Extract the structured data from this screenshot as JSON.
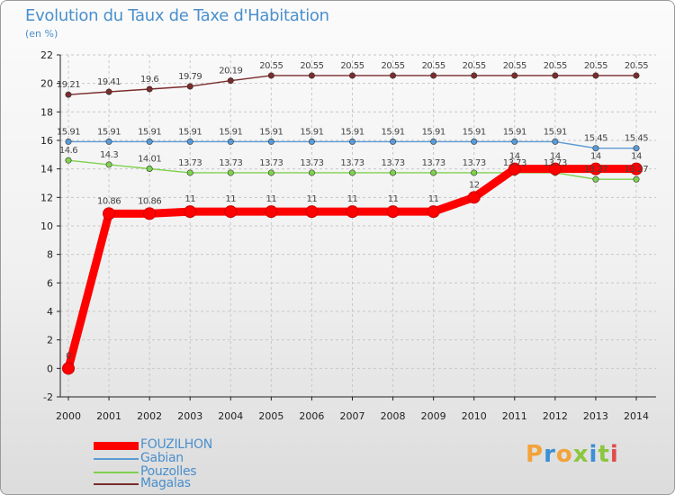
{
  "page": {
    "logo": "Proxiti"
  },
  "chart_data": {
    "type": "line",
    "title": "Evolution du Taux de Taxe d'Habitation",
    "subtitle": "(en %)",
    "xlabel": "",
    "ylabel": "",
    "x": [
      "2000",
      "2001",
      "2002",
      "2003",
      "2004",
      "2005",
      "2006",
      "2007",
      "2008",
      "2009",
      "2010",
      "2011",
      "2012",
      "2013",
      "2014"
    ],
    "ylim": [
      -2,
      22
    ],
    "yticks": [
      -2,
      0,
      2,
      4,
      6,
      8,
      10,
      12,
      14,
      16,
      18,
      20,
      22
    ],
    "grid": true,
    "legend": "bottom-left",
    "series": [
      {
        "name": "FOUZILHON",
        "color": "#ff0000",
        "values": [
          0,
          10.86,
          10.86,
          11,
          11,
          11,
          11,
          11,
          11,
          11,
          12,
          14,
          14,
          14,
          14
        ],
        "labels": [
          "0",
          "10.86",
          "10.86",
          "11",
          "11",
          "11",
          "11",
          "11",
          "11",
          "11",
          "12",
          "14",
          "14",
          "14",
          "14"
        ]
      },
      {
        "name": "Gabian",
        "color": "#5b9bd5",
        "values": [
          15.91,
          15.91,
          15.91,
          15.91,
          15.91,
          15.91,
          15.91,
          15.91,
          15.91,
          15.91,
          15.91,
          15.91,
          15.91,
          15.45,
          15.45
        ],
        "labels": [
          "15.91",
          "15.91",
          "15.91",
          "15.91",
          "15.91",
          "15.91",
          "15.91",
          "15.91",
          "15.91",
          "15.91",
          "15.91",
          "15.91",
          "15.91",
          "15.45",
          "15.45"
        ]
      },
      {
        "name": "Pouzolles",
        "color": "#7fd14f",
        "values": [
          14.6,
          14.3,
          14.01,
          13.73,
          13.73,
          13.73,
          13.73,
          13.73,
          13.73,
          13.73,
          13.73,
          13.73,
          13.73,
          13.27,
          13.27
        ],
        "labels": [
          "14.6",
          "14.3",
          "14.01",
          "13.73",
          "13.73",
          "13.73",
          "13.73",
          "13.73",
          "13.73",
          "13.73",
          "13.73",
          "13.73",
          "13.73",
          "13.27",
          "13.27"
        ]
      },
      {
        "name": "Magalas",
        "color": "#7b2c2c",
        "values": [
          19.21,
          19.41,
          19.6,
          19.79,
          20.19,
          20.55,
          20.55,
          20.55,
          20.55,
          20.55,
          20.55,
          20.55,
          20.55,
          20.55,
          20.55
        ],
        "labels": [
          "19.21",
          "19.41",
          "19.6",
          "19.79",
          "20.19",
          "20.55",
          "20.55",
          "20.55",
          "20.55",
          "20.55",
          "20.55",
          "20.55",
          "20.55",
          "20.55",
          "20.55"
        ]
      }
    ]
  }
}
